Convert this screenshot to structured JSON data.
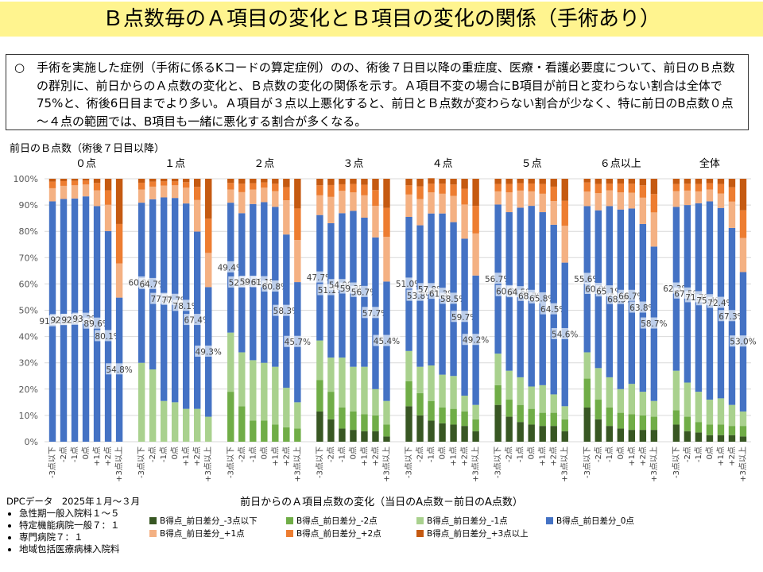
{
  "title": "Ｂ点数毎のＡ項目の変化とＢ項目の変化の関係（手術あり）",
  "note": {
    "bullet": "○",
    "text": "手術を実施した症例（手術に係るKコードの算定症例）のの、術後７日目以降の重症度、医療・看護必要度について、前日のＢ点数の群別に、前日からのＡ点数の変化と、Ｂ点数の変化の関係を示す。Ａ項目不変の場合にB項目が前日と変わらない割合は全体で75%と、術後6日目までより多い。Ａ項目が３点以上悪化すると、前日とＢ点数が変わらない割合が少なく、特に前日のB点数０点～４点の範囲では、B項目も一緒に悪化する割合が多くなる。"
  },
  "source": {
    "heading": "DPCデータ　2025年１月～３月",
    "items": [
      "急性期一般入院料１～５",
      "特定機能病院一般７：１",
      "専門病院７：１",
      "地域包括医療病棟入院料"
    ]
  },
  "chart_data": {
    "type": "bar",
    "stacked": true,
    "top_label": "前日のＢ点数（術後７日目以降）",
    "xlabel": "前日からのＡ項目点数の変化（当日のA点数－前日のA点数）",
    "groups": [
      "０点",
      "１点",
      "２点",
      "３点",
      "４点",
      "５点",
      "６点以上",
      "全体"
    ],
    "categories": [
      "-3点以下",
      "-2点",
      "-1点",
      "0点",
      "+1点",
      "+2点",
      "+3点以上"
    ],
    "y_ticks": [
      "0%",
      "10%",
      "20%",
      "30%",
      "40%",
      "50%",
      "60%",
      "70%",
      "80%",
      "90%",
      "100%"
    ],
    "ylim": [
      0,
      100
    ],
    "series_names": [
      "B得点_前日差分_-3点以下",
      "B得点_前日差分_-2点",
      "B得点_前日差分_-1点",
      "B得点_前日差分_0点",
      "B得点_前日差分_+1点",
      "B得点_前日差分_+2点",
      "B得点_前日差分_+3点以上"
    ],
    "colors": [
      "#385723",
      "#70ad47",
      "#a9d18e",
      "#4472c4",
      "#f4b183",
      "#ed7d31",
      "#c55a11"
    ],
    "labels": [
      [
        "91.4%",
        "92.3%",
        "92.5%",
        "93.3%",
        "89.6%",
        "80.1%",
        "54.8%"
      ],
      [
        "60.9%",
        "64.7%",
        "77.4%",
        "77.7%",
        "78.1%",
        "67.4%",
        "49.3%"
      ],
      [
        "49.4%",
        "52.9%",
        "59.4%",
        "61.1%",
        "60.8%",
        "58.3%",
        "45.7%"
      ],
      [
        "47.7%",
        "51.1%",
        "54.9%",
        "59.3%",
        "56.7%",
        "57.7%",
        "45.4%"
      ],
      [
        "51.0%",
        "53.8%",
        "57.8%",
        "61.3%",
        "58.5%",
        "59.7%",
        "49.2%"
      ],
      [
        "56.7%",
        "60.3%",
        "64.5%",
        "68.7%",
        "65.8%",
        "64.5%",
        "54.6%"
      ],
      [
        "55.6%",
        "60.0%",
        "65.1%",
        "68.3%",
        "66.7%",
        "63.8%",
        "58.7%"
      ],
      [
        "62.3%",
        "67.5%",
        "71.7%",
        "75.4%",
        "72.4%",
        "67.3%",
        "53.0%"
      ]
    ],
    "values": [
      [
        [
          0,
          0,
          0,
          91.4,
          5,
          2.5,
          1.1
        ],
        [
          0,
          0,
          0,
          92.3,
          5,
          1.8,
          0.9
        ],
        [
          0,
          0,
          0,
          92.5,
          5,
          1.7,
          0.8
        ],
        [
          0,
          0,
          0,
          93.3,
          4.5,
          1.5,
          0.7
        ],
        [
          0,
          0,
          0,
          89.6,
          6,
          2.8,
          1.6
        ],
        [
          0,
          0,
          0,
          80.1,
          10,
          5.5,
          4.4
        ],
        [
          0,
          0,
          0,
          54.8,
          13,
          15,
          17.2
        ]
      ],
      [
        [
          0,
          0,
          30,
          60.9,
          5,
          2.6,
          1.5
        ],
        [
          0,
          0,
          27.5,
          64.7,
          4.8,
          1.9,
          1.1
        ],
        [
          0,
          0,
          15.5,
          77.4,
          4.5,
          1.6,
          1
        ],
        [
          0,
          0,
          15,
          77.7,
          4.8,
          1.5,
          1
        ],
        [
          0,
          0,
          12.5,
          78.1,
          6,
          2.1,
          1.3
        ],
        [
          0,
          0,
          12.5,
          67.4,
          12,
          5,
          3.1
        ],
        [
          0,
          0,
          9.5,
          49.3,
          13,
          13,
          15.2
        ]
      ],
      [
        [
          0,
          19,
          22.5,
          49.4,
          5,
          2.5,
          1.6
        ],
        [
          0,
          13.5,
          20.5,
          52.9,
          8,
          3.2,
          1.9
        ],
        [
          0,
          8,
          23,
          59.4,
          5.5,
          2.4,
          1.7
        ],
        [
          0,
          8,
          22,
          61.1,
          5.5,
          2,
          1.4
        ],
        [
          0,
          6.5,
          22,
          60.8,
          6,
          2.8,
          1.9
        ],
        [
          0,
          5.5,
          15,
          58.3,
          13,
          5,
          3.2
        ],
        [
          0,
          5,
          10,
          45.7,
          16,
          12,
          11.3
        ]
      ],
      [
        [
          11.5,
          12,
          15,
          47.7,
          7.5,
          3.8,
          2.5
        ],
        [
          8.5,
          10.5,
          13,
          51.1,
          10,
          4.5,
          2.4
        ],
        [
          5,
          8,
          19,
          54.9,
          8.5,
          2.5,
          2.1
        ],
        [
          4.5,
          7,
          17,
          59.3,
          7,
          3.2,
          2
        ],
        [
          4,
          6.5,
          18,
          56.7,
          8.5,
          4,
          2.3
        ],
        [
          4,
          6,
          10,
          57.7,
          12,
          6,
          4.3
        ],
        [
          2,
          4.5,
          9,
          45.4,
          17,
          11,
          11.1
        ]
      ],
      [
        [
          13.5,
          9.5,
          11.5,
          51,
          8.5,
          3.5,
          2.5
        ],
        [
          10,
          8.5,
          10,
          53.8,
          10,
          4.8,
          2.9
        ],
        [
          8,
          7.5,
          13.5,
          57.8,
          8,
          3.3,
          2.1
        ],
        [
          7,
          6,
          12.5,
          61.3,
          7.5,
          3.8,
          1.9
        ],
        [
          6.5,
          6,
          12.5,
          58.5,
          10,
          4.3,
          2.2
        ],
        [
          6,
          5.5,
          6,
          59.7,
          13,
          6,
          3.8
        ],
        [
          4,
          4.5,
          5.5,
          49.2,
          16,
          10.5,
          10.3
        ]
      ],
      [
        [
          14,
          7.5,
          12,
          56.7,
          5,
          2.8,
          2
        ],
        [
          9.5,
          6.5,
          11,
          60.3,
          7.5,
          3.2,
          2
        ],
        [
          7.5,
          6.5,
          10.5,
          64.5,
          6.5,
          2.8,
          1.7
        ],
        [
          6.5,
          6,
          8.5,
          68.7,
          5.5,
          3,
          1.8
        ],
        [
          6,
          5,
          10.5,
          65.8,
          7,
          3.7,
          2
        ],
        [
          6,
          5,
          7,
          64.5,
          9,
          5.5,
          3
        ],
        [
          4,
          4.5,
          5,
          54.6,
          14,
          9.5,
          8.4
        ]
      ],
      [
        [
          13,
          11,
          10,
          55.6,
          5.5,
          3.5,
          1.4
        ],
        [
          8.5,
          7.5,
          12,
          60,
          6.5,
          3.5,
          2
        ],
        [
          6,
          7,
          11.5,
          65.1,
          6,
          2.5,
          1.9
        ],
        [
          5,
          6,
          9,
          68.3,
          6.5,
          3.4,
          1.8
        ],
        [
          4.5,
          6,
          11.5,
          66.7,
          6,
          3.4,
          1.9
        ],
        [
          4.5,
          5.5,
          9,
          63.8,
          10,
          4.7,
          2.5
        ],
        [
          4.5,
          5,
          6,
          58.7,
          13,
          7,
          5.8
        ]
      ],
      [
        [
          6.5,
          5.5,
          15,
          62.3,
          6,
          2.7,
          2
        ],
        [
          4,
          5.5,
          13,
          67.5,
          5.5,
          2.6,
          1.9
        ],
        [
          3.5,
          4,
          11.5,
          71.7,
          4.5,
          2.8,
          2
        ],
        [
          2.5,
          4,
          9.5,
          75.4,
          4.5,
          2.4,
          1.7
        ],
        [
          2.5,
          4,
          10,
          72.4,
          5.5,
          3.6,
          2
        ],
        [
          2.5,
          3.5,
          8,
          67.3,
          10,
          5.5,
          3.2
        ],
        [
          2,
          4,
          5.5,
          53,
          13,
          10.5,
          12
        ]
      ]
    ]
  }
}
